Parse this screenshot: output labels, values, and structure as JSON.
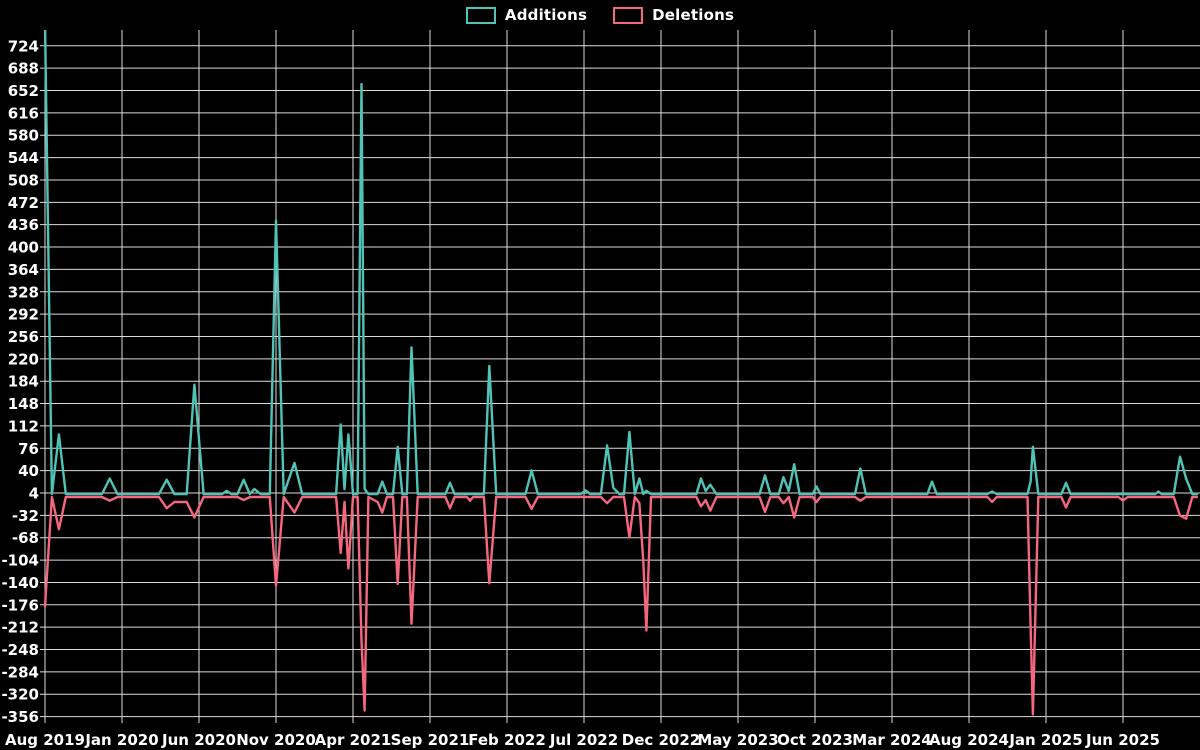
{
  "legend": {
    "additions_label": "Additions",
    "deletions_label": "Deletions"
  },
  "colors": {
    "additions": "#50c3b7",
    "deletions": "#f5677f",
    "grid": "#dcdcdc",
    "text": "#ffffff",
    "background": "#000000"
  },
  "chart_data": {
    "type": "line",
    "title": "",
    "xlabel": "",
    "ylabel": "",
    "grid": true,
    "legend_position": "top-center",
    "y_ticks": [
      724,
      688,
      652,
      616,
      580,
      544,
      508,
      472,
      436,
      400,
      364,
      328,
      292,
      256,
      220,
      184,
      148,
      112,
      76,
      40,
      4,
      -32,
      -68,
      -104,
      -140,
      -176,
      -212,
      -248,
      -284,
      -320,
      -356
    ],
    "y_range": [
      -356,
      724
    ],
    "x_unit": "months since Aug 2019",
    "x_ticks": [
      [
        0,
        "Aug 2019"
      ],
      [
        5,
        "Jan 2020"
      ],
      [
        10,
        "Jun 2020"
      ],
      [
        15,
        "Nov 2020"
      ],
      [
        20,
        "Apr 2021"
      ],
      [
        25,
        "Sep 2021"
      ],
      [
        30,
        "Feb 2022"
      ],
      [
        35,
        "Jul 2022"
      ],
      [
        40,
        "Dec 2022"
      ],
      [
        45,
        "May 2023"
      ],
      [
        50,
        "Oct 2023"
      ],
      [
        55,
        "Mar 2024"
      ],
      [
        60,
        "Aug 2024"
      ],
      [
        65,
        "Jan 2025"
      ],
      [
        70,
        "Jun 2025"
      ]
    ],
    "series_names": [
      "Additions",
      "Deletions"
    ],
    "points_format": [
      "month_offset",
      "additions",
      "deletions"
    ],
    "points": [
      [
        0.0,
        760,
        -176
      ],
      [
        0.45,
        0,
        0
      ],
      [
        0.9,
        96,
        -52
      ],
      [
        1.35,
        0,
        0
      ],
      [
        3.7,
        0,
        0
      ],
      [
        4.2,
        25,
        -6
      ],
      [
        4.7,
        0,
        0
      ],
      [
        7.4,
        0,
        0
      ],
      [
        7.9,
        23,
        -18
      ],
      [
        8.4,
        0,
        -8
      ],
      [
        9.2,
        0,
        -8
      ],
      [
        9.7,
        176,
        -33
      ],
      [
        10.3,
        0,
        0
      ],
      [
        11.5,
        0,
        0
      ],
      [
        11.8,
        5,
        0
      ],
      [
        12.1,
        0,
        0
      ],
      [
        12.5,
        0,
        0
      ],
      [
        12.9,
        23,
        -5
      ],
      [
        13.3,
        0,
        0
      ],
      [
        13.6,
        8,
        0
      ],
      [
        14.0,
        0,
        0
      ],
      [
        14.6,
        0,
        0
      ],
      [
        15.0,
        440,
        -143
      ],
      [
        15.5,
        0,
        0
      ],
      [
        16.2,
        50,
        -25
      ],
      [
        16.7,
        0,
        0
      ],
      [
        18.9,
        0,
        0
      ],
      [
        19.2,
        112,
        -90
      ],
      [
        19.45,
        8,
        -8
      ],
      [
        19.7,
        96,
        -115
      ],
      [
        20.0,
        0,
        0
      ],
      [
        20.3,
        0,
        0
      ],
      [
        20.55,
        660,
        -231
      ],
      [
        20.75,
        8,
        -344
      ],
      [
        21.0,
        0,
        0
      ],
      [
        21.6,
        0,
        -8
      ],
      [
        21.9,
        20,
        -25
      ],
      [
        22.2,
        0,
        0
      ],
      [
        22.6,
        0,
        0
      ],
      [
        22.9,
        76,
        -140
      ],
      [
        23.2,
        0,
        0
      ],
      [
        23.5,
        0,
        0
      ],
      [
        23.8,
        236,
        -204
      ],
      [
        24.2,
        0,
        0
      ],
      [
        26.0,
        0,
        0
      ],
      [
        26.3,
        18,
        -18
      ],
      [
        26.6,
        0,
        0
      ],
      [
        27.4,
        0,
        0
      ],
      [
        27.6,
        0,
        -6
      ],
      [
        27.8,
        0,
        0
      ],
      [
        28.5,
        0,
        0
      ],
      [
        28.85,
        206,
        -139
      ],
      [
        29.3,
        0,
        0
      ],
      [
        31.2,
        0,
        0
      ],
      [
        31.6,
        38,
        -19
      ],
      [
        32.0,
        0,
        0
      ],
      [
        34.8,
        0,
        0
      ],
      [
        35.1,
        6,
        0
      ],
      [
        35.4,
        0,
        0
      ],
      [
        36.1,
        0,
        0
      ],
      [
        36.5,
        78,
        -10
      ],
      [
        36.9,
        10,
        0
      ],
      [
        37.3,
        0,
        0
      ],
      [
        37.6,
        0,
        0
      ],
      [
        37.95,
        100,
        -65
      ],
      [
        38.3,
        0,
        0
      ],
      [
        38.6,
        25,
        -10
      ],
      [
        38.85,
        0,
        -104
      ],
      [
        39.05,
        5,
        -215
      ],
      [
        39.35,
        0,
        0
      ],
      [
        42.3,
        0,
        0
      ],
      [
        42.6,
        25,
        -15
      ],
      [
        42.9,
        5,
        -5
      ],
      [
        43.2,
        15,
        -22
      ],
      [
        43.6,
        0,
        0
      ],
      [
        46.4,
        0,
        0
      ],
      [
        46.75,
        30,
        -24
      ],
      [
        47.1,
        0,
        0
      ],
      [
        47.65,
        0,
        0
      ],
      [
        47.95,
        27,
        -10
      ],
      [
        48.3,
        5,
        0
      ],
      [
        48.65,
        48,
        -33
      ],
      [
        49.0,
        0,
        0
      ],
      [
        49.85,
        0,
        0
      ],
      [
        50.1,
        12,
        -8
      ],
      [
        50.35,
        0,
        0
      ],
      [
        52.6,
        0,
        0
      ],
      [
        52.95,
        41,
        -6
      ],
      [
        53.3,
        0,
        0
      ],
      [
        57.3,
        0,
        0
      ],
      [
        57.6,
        20,
        0
      ],
      [
        57.9,
        0,
        0
      ],
      [
        61.2,
        0,
        0
      ],
      [
        61.5,
        4,
        -8
      ],
      [
        61.8,
        0,
        0
      ],
      [
        63.8,
        0,
        0
      ],
      [
        64.0,
        20,
        -209
      ],
      [
        64.15,
        76,
        -350
      ],
      [
        64.5,
        0,
        0
      ],
      [
        66.0,
        0,
        0
      ],
      [
        66.3,
        18,
        -17
      ],
      [
        66.6,
        0,
        0
      ],
      [
        69.7,
        0,
        0
      ],
      [
        70.0,
        0,
        -6
      ],
      [
        70.3,
        0,
        0
      ],
      [
        72.1,
        0,
        0
      ],
      [
        72.3,
        4,
        0
      ],
      [
        72.5,
        0,
        0
      ],
      [
        73.3,
        0,
        0
      ],
      [
        73.7,
        60,
        -30
      ],
      [
        74.1,
        25,
        -35
      ],
      [
        74.5,
        0,
        0
      ],
      [
        74.8,
        0,
        0
      ]
    ]
  }
}
